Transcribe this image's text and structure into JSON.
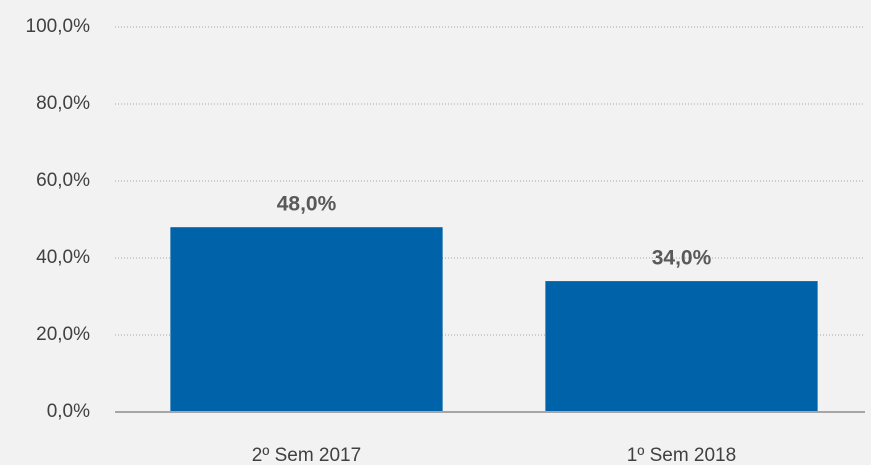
{
  "chart_data": {
    "type": "bar",
    "categories": [
      "2º Sem 2017",
      "1º Sem 2018"
    ],
    "values": [
      48,
      34
    ],
    "value_labels": [
      "48,0%",
      "34,0%"
    ],
    "color": "#0062a8",
    "ylim": [
      0,
      100
    ],
    "yticks": [
      {
        "value": 0,
        "label": "0,0%"
      },
      {
        "value": 20,
        "label": "20,0%"
      },
      {
        "value": 40,
        "label": "40,0%"
      },
      {
        "value": 60,
        "label": "60,0%"
      },
      {
        "value": 80,
        "label": "80,0%"
      },
      {
        "value": 100,
        "label": "100,0%"
      }
    ],
    "grid": true
  }
}
